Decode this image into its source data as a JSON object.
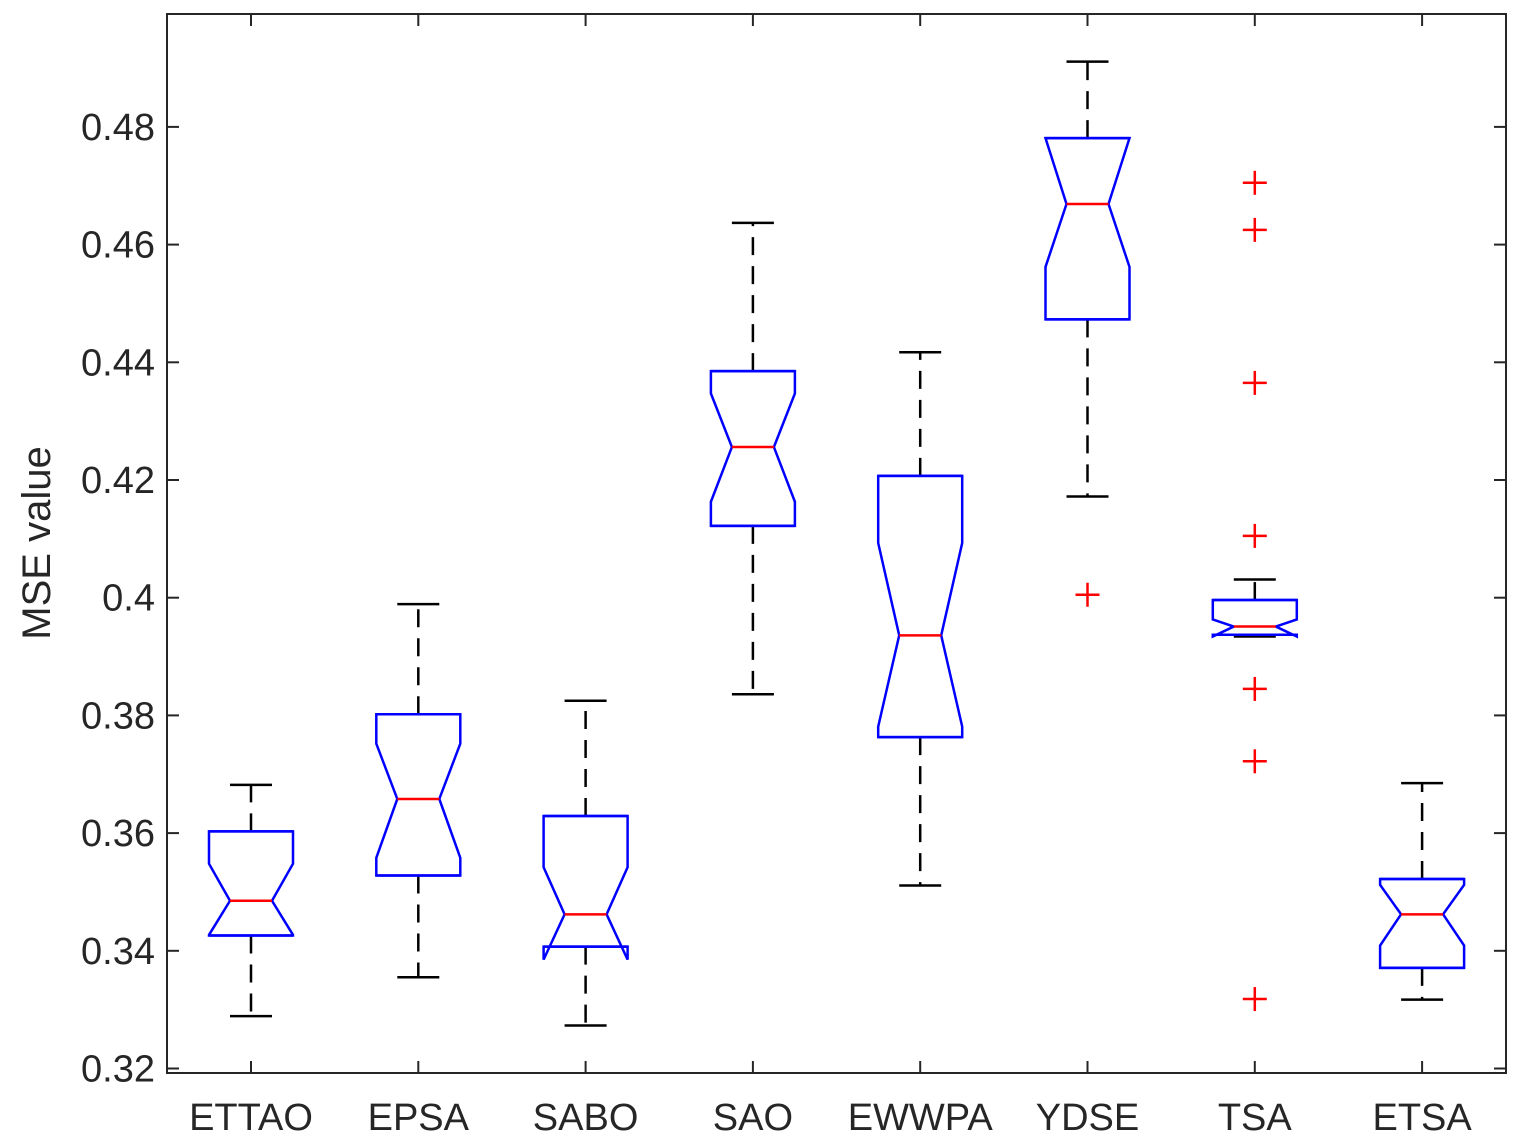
{
  "chart_data": {
    "type": "boxplot",
    "notched": true,
    "title": "",
    "xlabel": "",
    "ylabel": "MSE value",
    "ylim": [
      0.32,
      0.4985
    ],
    "yticks": [
      0.32,
      0.34,
      0.36,
      0.38,
      0.4,
      0.42,
      0.44,
      0.46,
      0.48
    ],
    "ytick_labels": [
      "0.32",
      "0.34",
      "0.36",
      "0.38",
      "0.4",
      "0.42",
      "0.44",
      "0.46",
      "0.48"
    ],
    "grid": false,
    "categories": [
      "ETTAO",
      "EPSA",
      "SABO",
      "SAO",
      "EWWPA",
      "YDSE",
      "TSA",
      "ETSA"
    ],
    "boxes": [
      {
        "name": "ETTAO",
        "whisker_low": 0.3289,
        "q1": 0.3426,
        "notch_low": 0.3427,
        "median": 0.3485,
        "notch_high": 0.3548,
        "q3": 0.3603,
        "whisker_high": 0.3682,
        "outliers": []
      },
      {
        "name": "EPSA",
        "whisker_low": 0.3355,
        "q1": 0.3528,
        "notch_low": 0.3558,
        "median": 0.3658,
        "notch_high": 0.3752,
        "q3": 0.3802,
        "whisker_high": 0.3989,
        "outliers": []
      },
      {
        "name": "SABO",
        "whisker_low": 0.3273,
        "q1": 0.3407,
        "notch_low": 0.3385,
        "median": 0.3462,
        "notch_high": 0.3542,
        "q3": 0.3629,
        "whisker_high": 0.3825,
        "outliers": []
      },
      {
        "name": "SAO",
        "whisker_low": 0.3836,
        "q1": 0.4122,
        "notch_low": 0.4163,
        "median": 0.4256,
        "notch_high": 0.4347,
        "q3": 0.4385,
        "whisker_high": 0.4637,
        "outliers": []
      },
      {
        "name": "EWWPA",
        "whisker_low": 0.3511,
        "q1": 0.3763,
        "notch_low": 0.3781,
        "median": 0.3936,
        "notch_high": 0.4093,
        "q3": 0.4207,
        "whisker_high": 0.4417,
        "outliers": []
      },
      {
        "name": "YDSE",
        "whisker_low": 0.4172,
        "q1": 0.4473,
        "notch_low": 0.4562,
        "median": 0.4669,
        "notch_high": 0.4781,
        "q3": 0.4781,
        "whisker_high": 0.4911,
        "outliers": [
          0.4005
        ]
      },
      {
        "name": "TSA",
        "whisker_low": 0.3934,
        "q1": 0.3937,
        "notch_low": 0.3934,
        "median": 0.3951,
        "notch_high": 0.3963,
        "q3": 0.3996,
        "whisker_high": 0.4031,
        "outliers": [
          0.4705,
          0.4625,
          0.4365,
          0.4105,
          0.3845,
          0.3722,
          0.3318
        ]
      },
      {
        "name": "ETSA",
        "whisker_low": 0.3317,
        "q1": 0.3371,
        "notch_low": 0.3409,
        "median": 0.3462,
        "notch_high": 0.3512,
        "q3": 0.3522,
        "whisker_high": 0.3685,
        "outliers": []
      }
    ],
    "colors": {
      "box": "#0000ff",
      "median": "#ff0000",
      "whisker": "#000000",
      "outlier": "#ff0000",
      "axis": "#262626"
    }
  }
}
